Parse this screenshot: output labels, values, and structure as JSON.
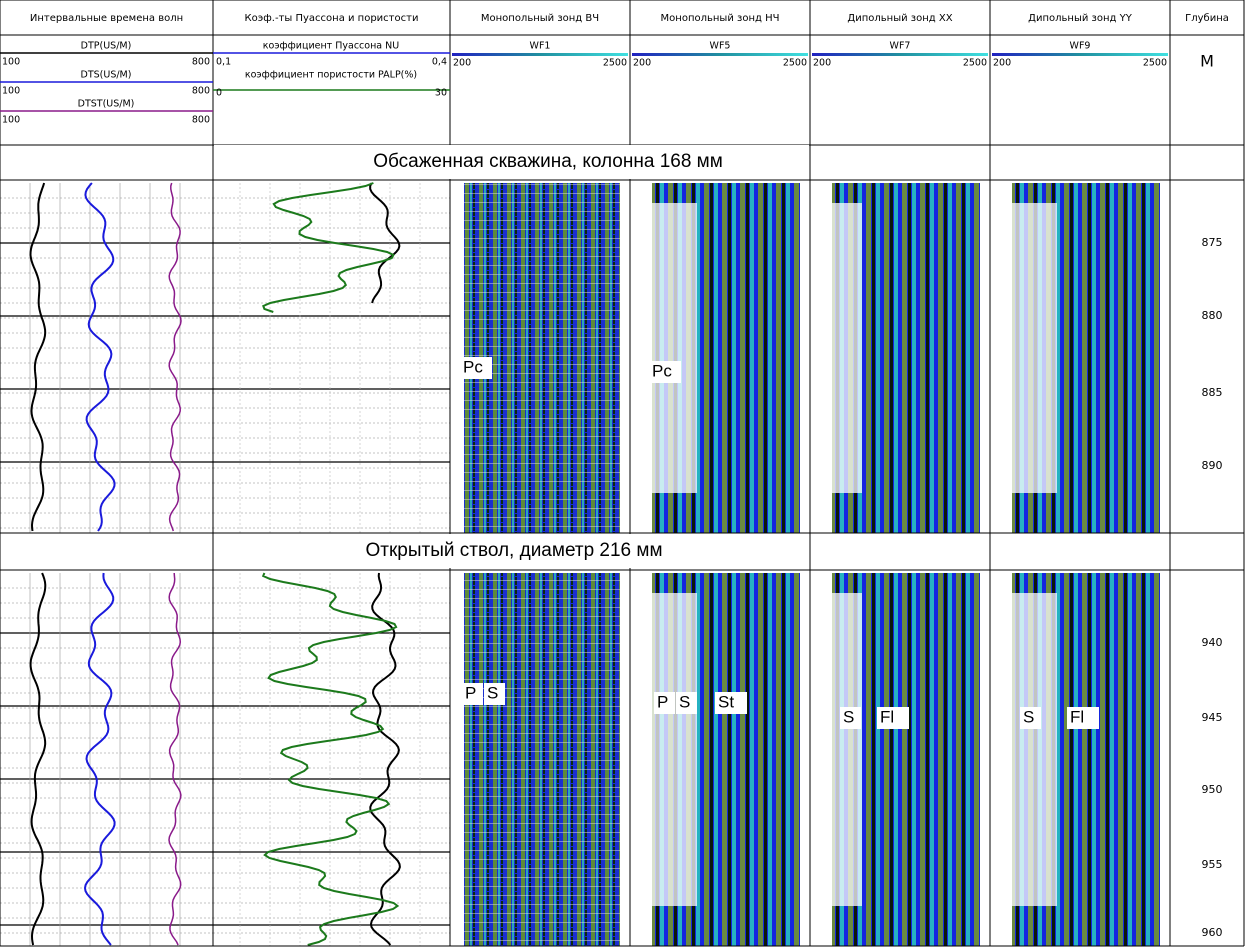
{
  "header": {
    "columns": [
      "Интервальные времена волн",
      "Коэф.-ты  Пуассона и пористости",
      "Монопольный зонд ВЧ",
      "Монопольный зонд НЧ",
      "Дипольный зонд XX",
      "Дипольный зонд YY",
      "Глубина"
    ]
  },
  "scales": {
    "col1": [
      {
        "name": "DTP(US/M)",
        "min": 100,
        "max": 800
      },
      {
        "name": "DTS(US/M)",
        "min": 100,
        "max": 800
      },
      {
        "name": "DTST(US/M)",
        "min": 100,
        "max": 800
      }
    ],
    "col2": [
      {
        "name": "коэффициент Пуассона NU",
        "min": "0,1",
        "max": "0,4"
      },
      {
        "name": "коэффициент пористости PALP(%)",
        "min": 0,
        "max": 30
      }
    ],
    "waves": [
      {
        "name": "WF1",
        "min": 200,
        "max": 2500
      },
      {
        "name": "WF5",
        "min": 200,
        "max": 2500
      },
      {
        "name": "WF7",
        "min": 200,
        "max": 2500
      },
      {
        "name": "WF9",
        "min": 200,
        "max": 2500
      }
    ],
    "depth_unit": "М"
  },
  "sections": [
    {
      "title": "Обсаженная скважина, колонна 168 мм",
      "depths": [
        875,
        880,
        885,
        890
      ],
      "labels": [
        [
          "Pc"
        ],
        [
          "Pc"
        ],
        [],
        []
      ]
    },
    {
      "title": "Открытый ствол, диаметр 216 мм",
      "depths": [
        940,
        945,
        950,
        955,
        960
      ],
      "labels": [
        [
          "P",
          "S"
        ],
        [
          "P",
          "S",
          "St"
        ],
        [
          "S",
          "Fl"
        ],
        [
          "S",
          "Fl"
        ]
      ]
    }
  ]
}
